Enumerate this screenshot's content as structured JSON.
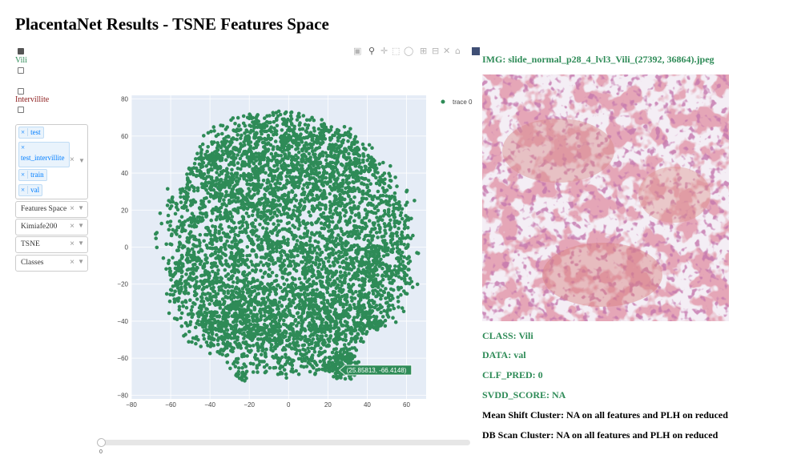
{
  "title": "PlacentaNet Results - TSNE Features Space",
  "filters": {
    "checkboxes": [
      {
        "label": "Vili",
        "checked": true,
        "color": "#2e8b57"
      },
      {
        "label": "",
        "checked": false
      },
      {
        "label": "Intervillite",
        "checked": false,
        "color": "#8b1a1a"
      }
    ],
    "datasets": [
      "test",
      "test_intervillite",
      "train",
      "val"
    ],
    "dropdowns": [
      "Features Space",
      "Kimiafe200",
      "TSNE",
      "Classes"
    ],
    "clear_glyph": "×",
    "arrow_glyph": "▼"
  },
  "modebar": [
    "camera-icon",
    "zoom-icon",
    "pan-icon",
    "box-select-icon",
    "lasso-icon",
    "zoom-in-icon",
    "zoom-out-icon",
    "autoscale-icon",
    "reset-icon",
    "plotly-logo-icon"
  ],
  "chart_data": {
    "type": "scatter",
    "xlim": [
      -80,
      70
    ],
    "ylim": [
      -82,
      82
    ],
    "xticks": [
      -80,
      -60,
      -40,
      -20,
      0,
      20,
      40,
      60
    ],
    "yticks": [
      -80,
      -60,
      -40,
      -20,
      0,
      20,
      40,
      60,
      80
    ],
    "grid": true,
    "legend": "top-right",
    "series": [
      {
        "name": "trace 0",
        "color": "#2e8b57"
      }
    ],
    "hover": {
      "x": 25.85813,
      "y": -66.4148,
      "label": "(25.85813, -66.4148)"
    }
  },
  "image": {
    "title": "IMG: slide_normal_p28_4_lvl3_Vili_(27392, 36864).jpeg"
  },
  "info": {
    "class": "CLASS: Vili",
    "data": "DATA: val",
    "clf_pred": "CLF_PRED: 0",
    "svdd_score": "SVDD_SCORE: NA",
    "mean_shift": "Mean Shift Cluster: NA on all features and PLH on reduced",
    "db_scan": "DB Scan Cluster: NA on all features and PLH on reduced"
  },
  "slider": {
    "value": "0"
  }
}
